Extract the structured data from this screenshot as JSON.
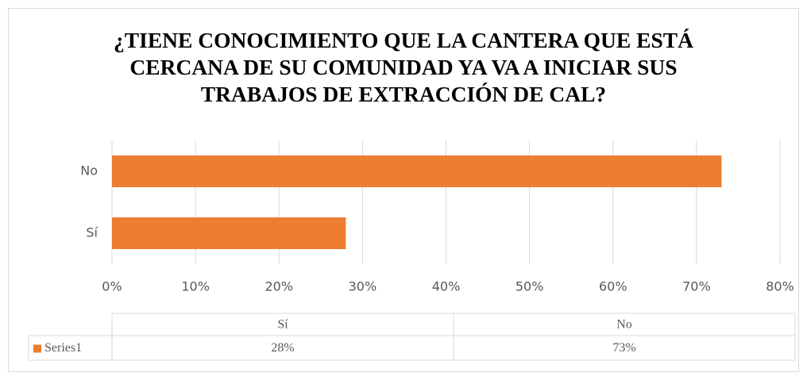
{
  "chart_data": {
    "type": "bar",
    "orientation": "horizontal",
    "title": "¿TIENE CONOCIMIENTO QUE LA CANTERA QUE ESTÁ CERCANA DE SU COMUNIDAD YA VA A INICIAR SUS TRABAJOS DE EXTRACCIÓN DE CAL?",
    "categories": [
      "Sí",
      "No"
    ],
    "series": [
      {
        "name": "Series1",
        "color": "#ed7d31",
        "values": [
          28,
          73
        ],
        "value_labels": [
          "28%",
          "73%"
        ]
      }
    ],
    "xlim": [
      0,
      80
    ],
    "xticks": [
      {
        "value": 0,
        "label": "0%"
      },
      {
        "value": 10,
        "label": "10%"
      },
      {
        "value": 20,
        "label": "20%"
      },
      {
        "value": 30,
        "label": "30%"
      },
      {
        "value": 40,
        "label": "40%"
      },
      {
        "value": 50,
        "label": "50%"
      },
      {
        "value": 60,
        "label": "60%"
      },
      {
        "value": 70,
        "label": "70%"
      },
      {
        "value": 80,
        "label": "80%"
      }
    ],
    "grid": true,
    "data_table": true
  }
}
